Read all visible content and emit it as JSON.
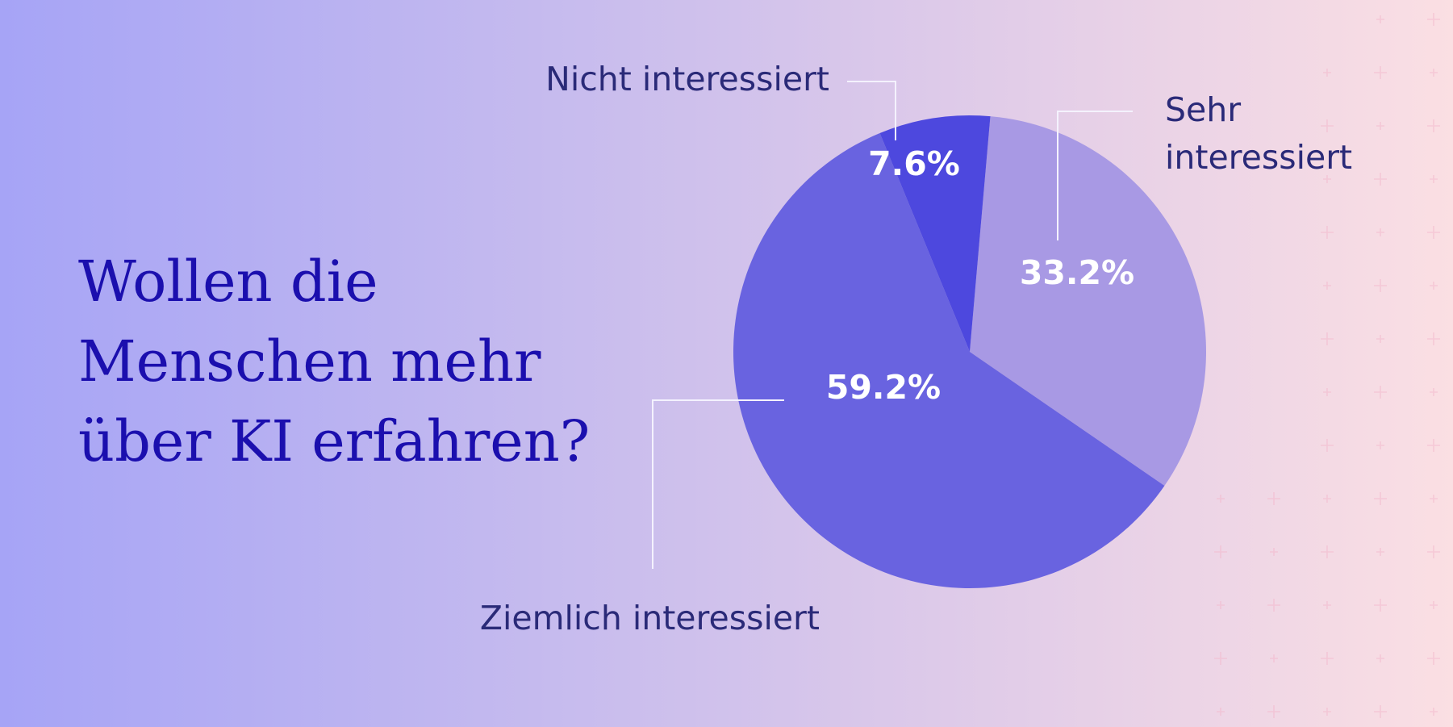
{
  "title_lines": [
    "Wollen die",
    "Menschen mehr",
    "über KI erfahren?"
  ],
  "colors": {
    "title": "#1b0fae",
    "label": "#2a2a78",
    "leader": "#f4f2ff",
    "pattern": "#f3b8cc"
  },
  "chart_data": {
    "type": "pie",
    "title": "Wollen die Menschen mehr über KI erfahren?",
    "unit": "%",
    "slices": [
      {
        "label": "Sehr interessiert",
        "label_lines": [
          "Sehr",
          "interessiert"
        ],
        "value": 33.2,
        "display": "33.2%",
        "color": "#a899e4"
      },
      {
        "label": "Ziemlich interessiert",
        "label_lines": [
          "Ziemlich interessiert"
        ],
        "value": 59.2,
        "display": "59.2%",
        "color": "#6963e0"
      },
      {
        "label": "Nicht interessiert",
        "label_lines": [
          "Nicht interessiert"
        ],
        "value": 7.6,
        "display": "7.6%",
        "color": "#4d48de"
      }
    ]
  }
}
